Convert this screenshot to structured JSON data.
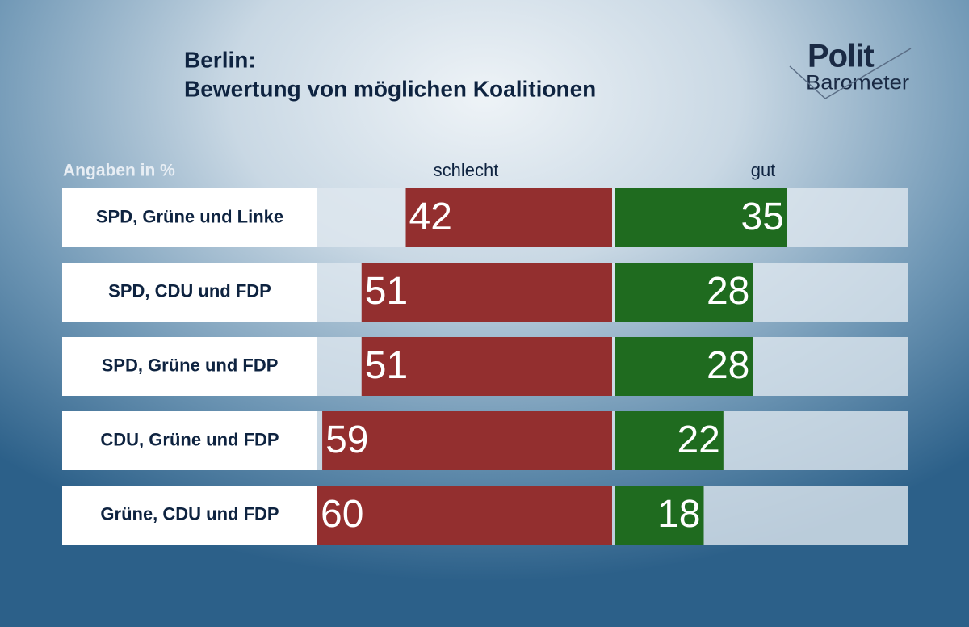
{
  "chart_data": {
    "type": "bar",
    "title": "Berlin:",
    "subtitle": "Bewertung von möglichen Koalitionen",
    "note": "Angaben in %",
    "logo": {
      "top": "Polit",
      "bottom": "Barometer"
    },
    "categories": [
      "SPD, Grüne und Linke",
      "SPD, CDU und FDP",
      "SPD, Grüne und FDP",
      "CDU, Grüne und FDP",
      "Grüne, CDU und FDP"
    ],
    "series": [
      {
        "name": "schlecht",
        "color": "#932f2f",
        "values": [
          42,
          51,
          51,
          59,
          60
        ]
      },
      {
        "name": "gut",
        "color": "#1f6b1f",
        "values": [
          35,
          28,
          28,
          22,
          18
        ]
      }
    ]
  }
}
